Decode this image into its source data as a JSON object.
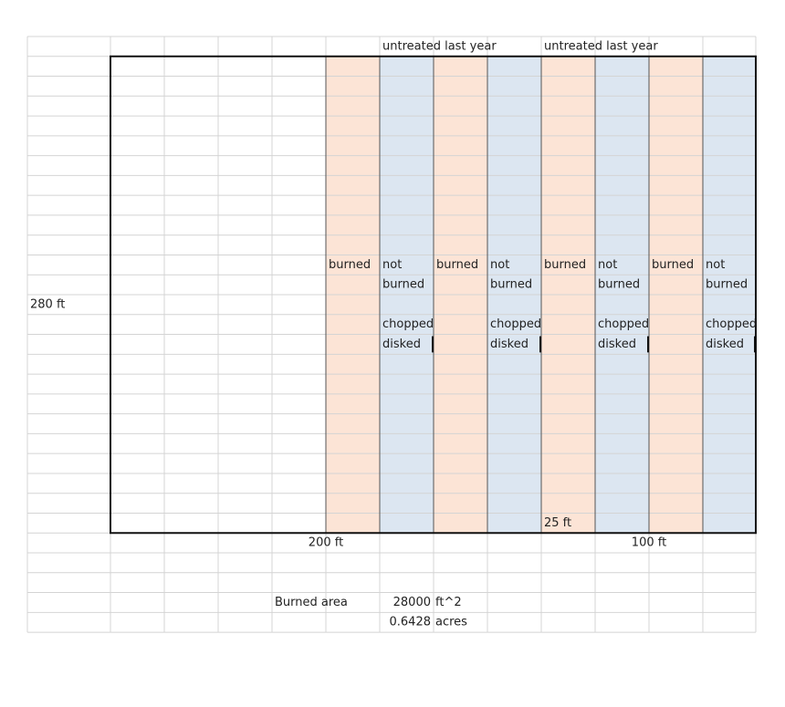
{
  "column_headers": [
    "untreated last year",
    "untreated last year"
  ],
  "strips": [
    {
      "label": [
        "burned"
      ]
    },
    {
      "label": [
        "not",
        "burned"
      ],
      "method": [
        "chopped",
        "disked"
      ]
    },
    {
      "label": [
        "burned"
      ]
    },
    {
      "label": [
        "not",
        "burned"
      ],
      "method": [
        "chopped",
        "disked"
      ]
    },
    {
      "label": [
        "burned"
      ]
    },
    {
      "label": [
        "not",
        "burned"
      ],
      "method": [
        "chopped",
        "disked"
      ]
    },
    {
      "label": [
        "burned"
      ]
    },
    {
      "label": [
        "not",
        "burned"
      ],
      "method": [
        "chopped",
        "disked"
      ]
    }
  ],
  "dimensions": {
    "height": "280 ft",
    "strip_width": "25 ft",
    "width_left": "200 ft",
    "width_right": "100 ft"
  },
  "calculations": {
    "label": "Burned area",
    "rows": [
      {
        "value": "28000",
        "unit": "ft^2"
      },
      {
        "value": "0.6428",
        "unit": "acres"
      }
    ]
  }
}
